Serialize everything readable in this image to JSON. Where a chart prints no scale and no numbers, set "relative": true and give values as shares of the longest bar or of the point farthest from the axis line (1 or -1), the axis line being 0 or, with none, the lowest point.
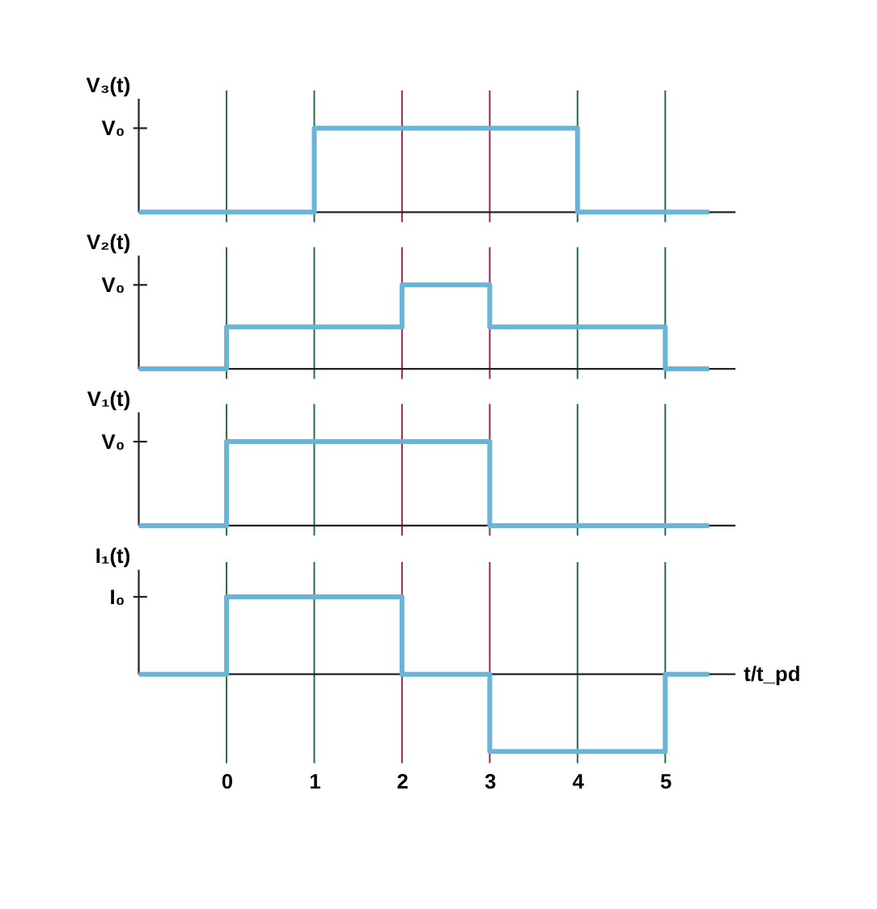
{
  "chart_data": [
    {
      "type": "step",
      "relative": true,
      "ylabel": "V₃(t)",
      "annotations": [
        "V₀"
      ],
      "x": [
        -1,
        1,
        4,
        5.5
      ],
      "xlim": [
        -1,
        5.8
      ],
      "xticks": [
        0,
        1,
        2,
        3,
        4,
        5
      ],
      "tick_labels": false,
      "grid": false,
      "series": [
        {
          "color": "#6ab4d8",
          "values": [
            0,
            1,
            0,
            0
          ]
        }
      ],
      "ref_lines": [
        {
          "axis": "x",
          "value": 0,
          "color": "#2e6e55"
        },
        {
          "axis": "x",
          "value": 1,
          "color": "#2e6e55"
        },
        {
          "axis": "x",
          "value": 2,
          "color": "#9c2c55"
        },
        {
          "axis": "x",
          "value": 3,
          "color": "#9c2c55"
        },
        {
          "axis": "x",
          "value": 4,
          "color": "#2e6e55"
        },
        {
          "axis": "x",
          "value": 5,
          "color": "#2e6e55"
        }
      ]
    },
    {
      "type": "step",
      "relative": true,
      "ylabel": "V₂(t)",
      "annotations": [
        "V₀"
      ],
      "x": [
        -1,
        0,
        2,
        3,
        5,
        5.5
      ],
      "xlim": [
        -1,
        5.8
      ],
      "xticks": [
        0,
        1,
        2,
        3,
        4,
        5
      ],
      "tick_labels": false,
      "grid": false,
      "series": [
        {
          "color": "#6ab4d8",
          "values": [
            0,
            0.5,
            1,
            0.5,
            0,
            0
          ]
        }
      ],
      "ref_lines": [
        {
          "axis": "x",
          "value": 0,
          "color": "#2e6e55"
        },
        {
          "axis": "x",
          "value": 1,
          "color": "#2e6e55"
        },
        {
          "axis": "x",
          "value": 2,
          "color": "#9c2c55"
        },
        {
          "axis": "x",
          "value": 3,
          "color": "#9c2c55"
        },
        {
          "axis": "x",
          "value": 4,
          "color": "#2e6e55"
        },
        {
          "axis": "x",
          "value": 5,
          "color": "#2e6e55"
        }
      ]
    },
    {
      "type": "step",
      "relative": true,
      "ylabel": "V₁(t)",
      "annotations": [
        "V₀"
      ],
      "x": [
        -1,
        0,
        3,
        5.5
      ],
      "xlim": [
        -1,
        5.8
      ],
      "xticks": [
        0,
        1,
        2,
        3,
        4,
        5
      ],
      "tick_labels": false,
      "grid": false,
      "series": [
        {
          "color": "#6ab4d8",
          "values": [
            0,
            1,
            0,
            0
          ]
        }
      ],
      "ref_lines": [
        {
          "axis": "x",
          "value": 0,
          "color": "#2e6e55"
        },
        {
          "axis": "x",
          "value": 1,
          "color": "#2e6e55"
        },
        {
          "axis": "x",
          "value": 2,
          "color": "#9c2c55"
        },
        {
          "axis": "x",
          "value": 3,
          "color": "#9c2c55"
        },
        {
          "axis": "x",
          "value": 4,
          "color": "#2e6e55"
        },
        {
          "axis": "x",
          "value": 5,
          "color": "#2e6e55"
        }
      ]
    },
    {
      "type": "step",
      "relative": true,
      "ylabel": "I₁(t)",
      "xlabel": "t/t_pd",
      "annotations": [
        "I₀"
      ],
      "x": [
        -1,
        0,
        2,
        3,
        5,
        5.5
      ],
      "xlim": [
        -1,
        5.8
      ],
      "xticks": [
        0,
        1,
        2,
        3,
        4,
        5
      ],
      "tick_labels": "x",
      "grid": false,
      "series": [
        {
          "color": "#6ab4d8",
          "values": [
            0,
            1,
            0,
            -1,
            0,
            0
          ]
        }
      ],
      "ref_lines": [
        {
          "axis": "x",
          "value": 0,
          "color": "#2e6e55"
        },
        {
          "axis": "x",
          "value": 1,
          "color": "#2e6e55"
        },
        {
          "axis": "x",
          "value": 2,
          "color": "#9c2c55"
        },
        {
          "axis": "x",
          "value": 3,
          "color": "#9c2c55"
        },
        {
          "axis": "x",
          "value": 4,
          "color": "#2e6e55"
        },
        {
          "axis": "x",
          "value": 5,
          "color": "#2e6e55"
        }
      ]
    }
  ]
}
